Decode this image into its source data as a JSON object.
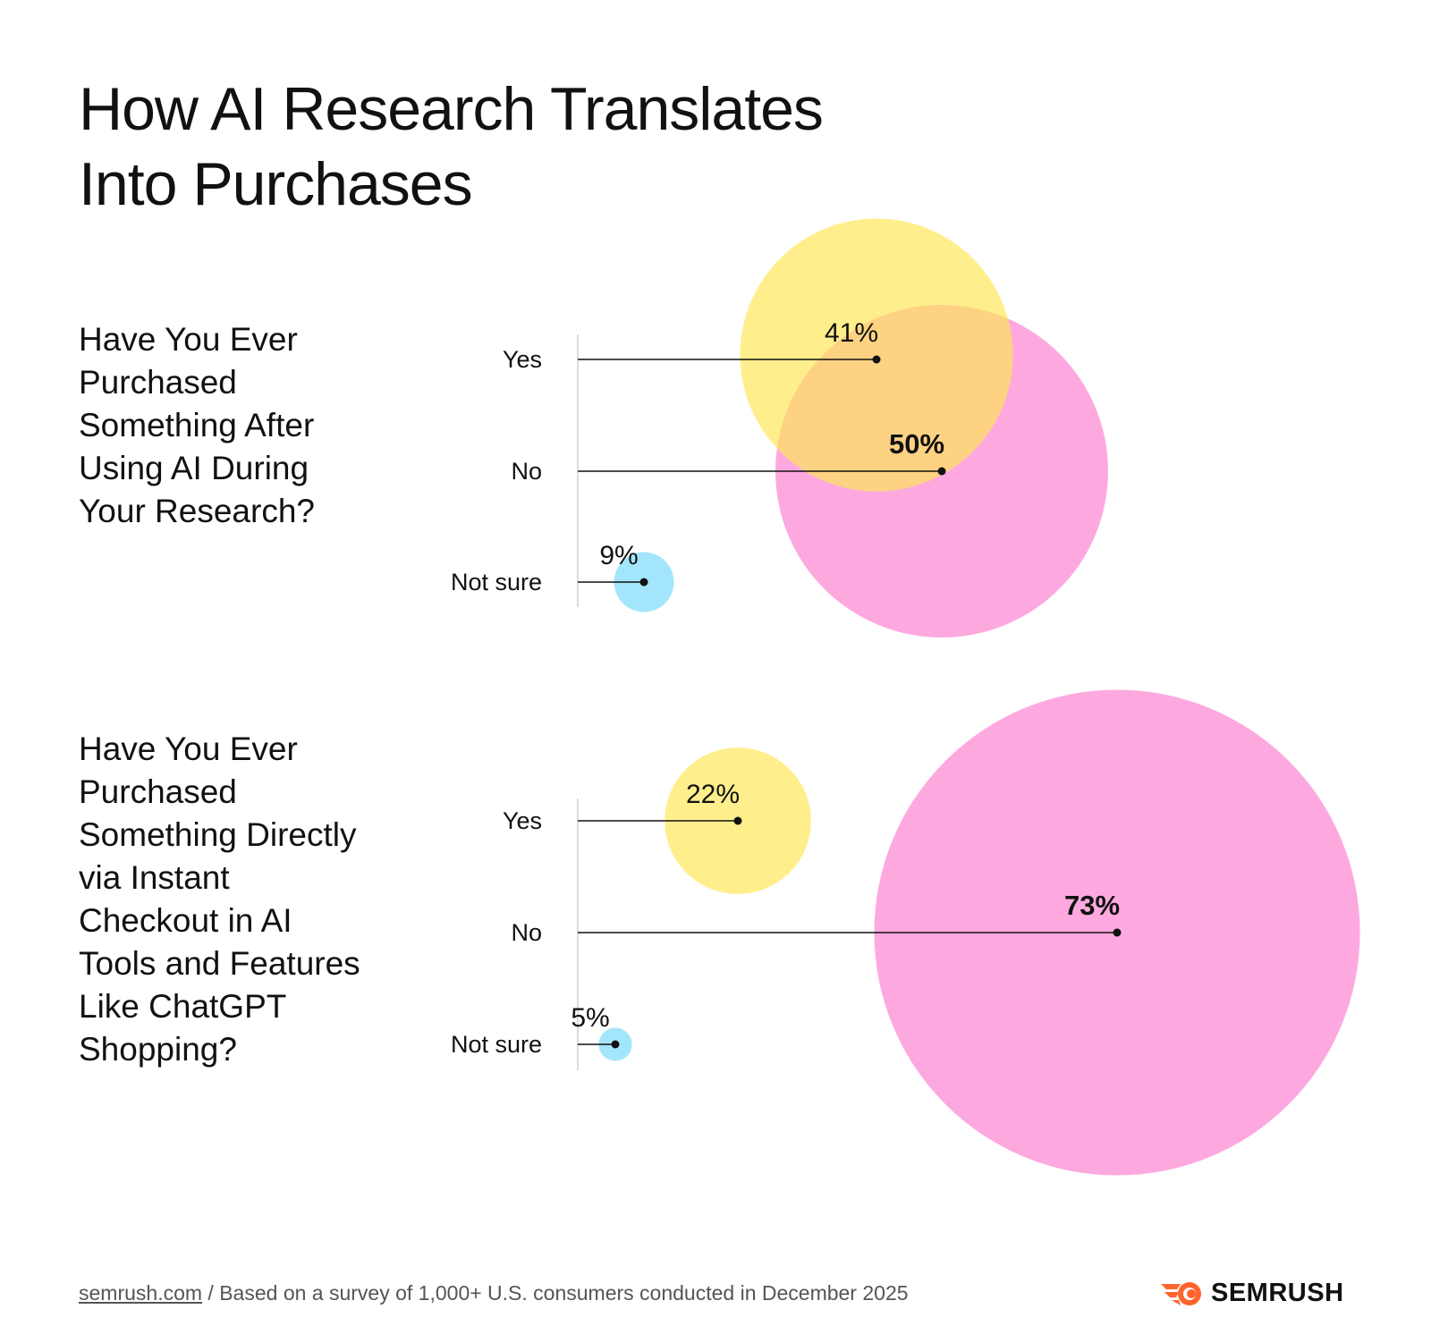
{
  "title": [
    "How AI Research Translates",
    "Into Purchases"
  ],
  "colors": {
    "yes": "#FFEE8C",
    "no": "#FDA9E0",
    "not_sure": "#A3E6FC",
    "overlap": "#FDD282",
    "axis": "#D8DCE8",
    "line": "#111111"
  },
  "chart_data": [
    {
      "type": "bubble",
      "title": "Have You Ever Purchased Something After Using AI During Your Research?",
      "title_lines": [
        "Have You Ever",
        "Purchased",
        "Something After",
        "Using AI During",
        "Your Research?"
      ],
      "categories": [
        "Yes",
        "No",
        "Not sure"
      ],
      "values": [
        41,
        50,
        9
      ],
      "labels": [
        "41%",
        "50%",
        "9%"
      ],
      "highlight": "No"
    },
    {
      "type": "bubble",
      "title": "Have You Ever Purchased Something Directly via Instant Checkout in AI Tools and Features Like ChatGPT Shopping?",
      "title_lines": [
        "Have You Ever",
        "Purchased",
        "Something Directly",
        "via Instant",
        "Checkout in AI",
        "Tools and Features",
        "Like ChatGPT",
        "Shopping?"
      ],
      "categories": [
        "Yes",
        "No",
        "Not sure"
      ],
      "values": [
        22,
        73,
        5
      ],
      "labels": [
        "22%",
        "73%",
        "5%"
      ],
      "highlight": "No"
    }
  ],
  "footer": {
    "link": "semrush.com",
    "text": " / Based on a survey of 1,000+ U.S. consumers conducted in December 2025"
  },
  "logo": {
    "text": "SEMRUSH",
    "icon": "semrush-fire-icon",
    "color": "#FF642D"
  }
}
